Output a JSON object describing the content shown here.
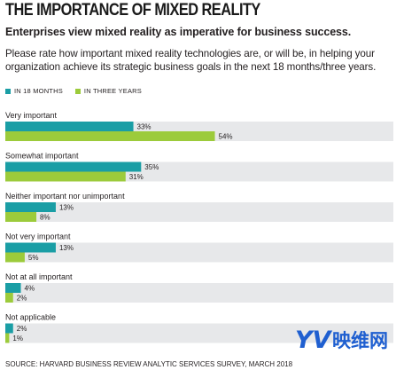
{
  "header": {
    "title": "THE IMPORTANCE OF MIXED REALITY",
    "subtitle": "Enterprises view mixed reality as imperative for business success.",
    "question": "Please rate how important mixed reality technologies are, or will be, in helping your organization achieve its strategic business goals in the next 18 months/three years."
  },
  "legend": {
    "items": [
      {
        "label": "IN 18 MONTHS",
        "color": "#1a9ea5"
      },
      {
        "label": "IN THREE YEARS",
        "color": "#9ccb3b"
      }
    ]
  },
  "chart_data": {
    "type": "bar",
    "orientation": "horizontal",
    "categories": [
      "Very important",
      "Somewhat important",
      "Neither important nor unimportant",
      "Not very important",
      "Not at all important",
      "Not applicable"
    ],
    "series": [
      {
        "name": "IN 18 MONTHS",
        "values": [
          33,
          35,
          13,
          13,
          4,
          2
        ],
        "labels": [
          "33%",
          "35%",
          "13%",
          "13%",
          "4%",
          "2%"
        ],
        "color": "#1a9ea5"
      },
      {
        "name": "IN THREE YEARS",
        "values": [
          54,
          31,
          8,
          5,
          2,
          1
        ],
        "labels": [
          "54%",
          "31%",
          "8%",
          "5%",
          "2%",
          "1%"
        ],
        "color": "#9ccb3b"
      }
    ],
    "xlim": [
      0,
      100
    ],
    "background_bar_color": "#e7e8ea",
    "grid": false,
    "legend_position": "top-left"
  },
  "footer": {
    "source": "SOURCE: HARVARD BUSINESS REVIEW ANALYTIC SERVICES SURVEY, MARCH 2018"
  },
  "watermark": {
    "logo_text": "YV",
    "text": "映维网",
    "color": "#1f5fd0"
  }
}
